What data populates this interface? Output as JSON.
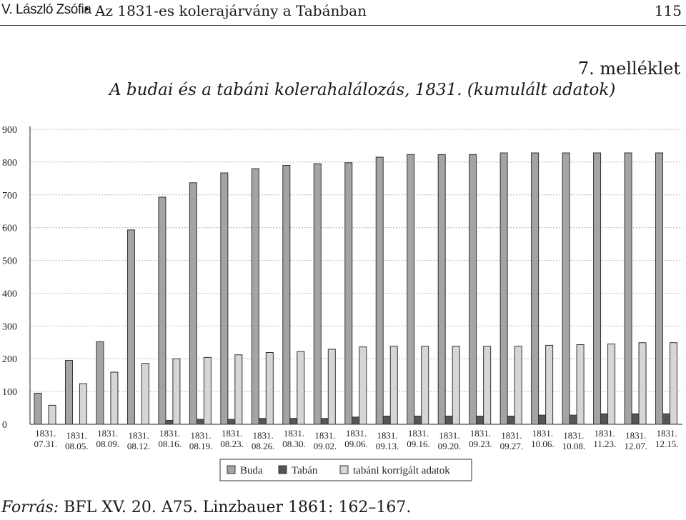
{
  "running_head": {
    "author": "V. László Zsófia",
    "bullet": "•",
    "title": "Az 1831-es kolerajárvány a Tabánban",
    "page_number": "115"
  },
  "appendix_label": "7. melléklet",
  "source": {
    "label": "Forrás:",
    "text": "BFL XV. 20. A75. Linzbauer 1861: 162–167."
  },
  "colors": {
    "buda": "#a4a4a8",
    "taban": "#555555",
    "corrected": "#d6d6d6",
    "axis": "#222222",
    "grid": "#bbbbbb"
  },
  "chart_data": {
    "type": "bar",
    "title": "A budai és a tabáni kolerahalálozás, 1831. (kumulált adatok)",
    "xlabel": "",
    "ylabel": "",
    "ylim": [
      0,
      900
    ],
    "yticks": [
      0,
      100,
      200,
      300,
      400,
      500,
      600,
      700,
      800,
      900
    ],
    "grid": true,
    "legend_position": "bottom",
    "categories": [
      [
        "1831.",
        "07.31."
      ],
      [
        "1831.",
        "08.05."
      ],
      [
        "1831.",
        "08.09."
      ],
      [
        "1831.",
        "08.12."
      ],
      [
        "1831.",
        "08.16."
      ],
      [
        "1831.",
        "08.19."
      ],
      [
        "1831.",
        "08.23."
      ],
      [
        "1831.",
        "08.26."
      ],
      [
        "1831.",
        "08.30."
      ],
      [
        "1831.",
        "09.02."
      ],
      [
        "1831.",
        "09.06."
      ],
      [
        "1831.",
        "09.13."
      ],
      [
        "1831.",
        "09.16."
      ],
      [
        "1831.",
        "09.20."
      ],
      [
        "1831.",
        "09.23."
      ],
      [
        "1831.",
        "09.27."
      ],
      [
        "1831.",
        "10.06."
      ],
      [
        "1831.",
        "10.08."
      ],
      [
        "1831.",
        "11.23."
      ],
      [
        "1831.",
        "12.07."
      ],
      [
        "1831.",
        "12.15."
      ]
    ],
    "series": [
      {
        "name": "Buda",
        "color_key": "buda",
        "values": [
          95,
          195,
          252,
          593,
          693,
          737,
          767,
          780,
          790,
          795,
          798,
          815,
          823,
          823,
          823,
          828,
          828,
          828,
          828,
          828,
          828
        ]
      },
      {
        "name": "Tabán",
        "color_key": "taban",
        "values": [
          0,
          0,
          0,
          0,
          12,
          15,
          15,
          18,
          18,
          18,
          22,
          25,
          25,
          25,
          25,
          25,
          28,
          28,
          32,
          32,
          32
        ]
      },
      {
        "name": "tabáni korrigált adatok",
        "color_key": "corrected",
        "values": [
          58,
          124,
          159,
          186,
          200,
          204,
          212,
          219,
          222,
          229,
          236,
          238,
          238,
          238,
          238,
          238,
          241,
          243,
          245,
          249,
          249
        ]
      }
    ]
  }
}
